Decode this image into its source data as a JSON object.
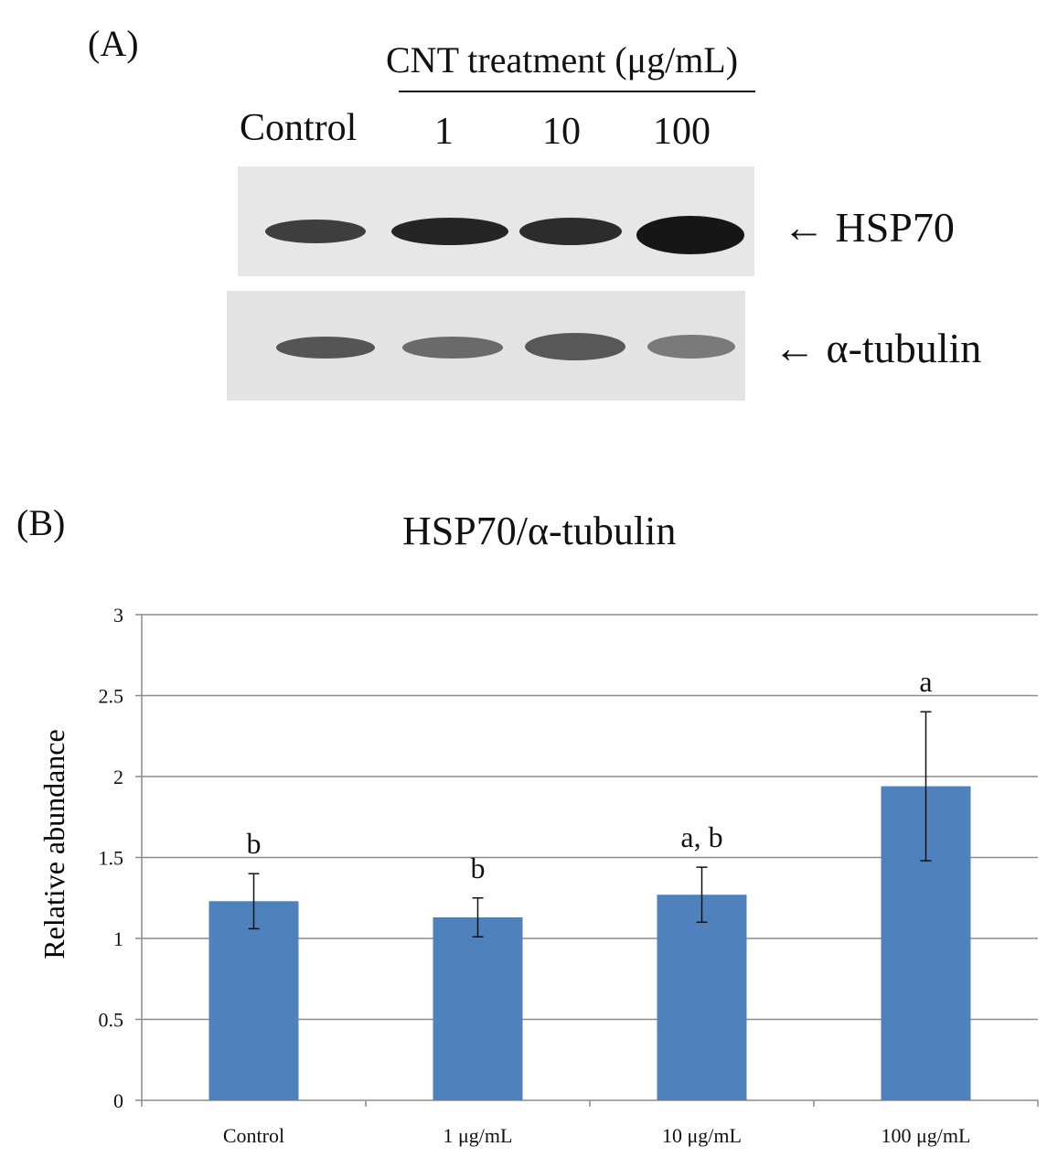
{
  "panel_a": {
    "label": "(A)",
    "header": "CNT treatment  (μg/mL)",
    "lanes": [
      "Control",
      "1",
      "10",
      "100"
    ],
    "blots": [
      {
        "arrow": "←",
        "name": "HSP70"
      },
      {
        "arrow": "←",
        "name": "α-tubulin"
      }
    ]
  },
  "panel_b": {
    "label": "(B)"
  },
  "chart_data": {
    "type": "bar",
    "title": "HSP70/α-tubulin",
    "xlabel": "",
    "ylabel": "Relative abundance",
    "categories": [
      "Control",
      "1 μg/mL",
      "10 μg/mL",
      "100 μg/mL"
    ],
    "values": [
      1.23,
      1.13,
      1.27,
      1.94
    ],
    "error": [
      0.17,
      0.12,
      0.17,
      0.46
    ],
    "annotations": [
      "b",
      "b",
      "a, b",
      "a"
    ],
    "ylim": [
      0,
      3
    ],
    "yticks": [
      "0",
      "0.5",
      "1",
      "1.5",
      "2",
      "2.5",
      "3"
    ],
    "grid": true,
    "bar_color": "#4f81bd"
  }
}
